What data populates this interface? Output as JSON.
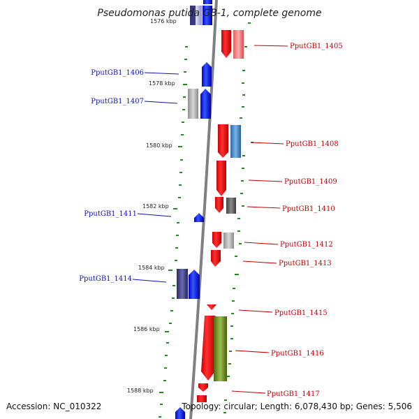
{
  "title": "Pseudomonas putida GB-1, complete genome",
  "footer": {
    "accession": "Accession: NC_010322",
    "summary": "Topology: circular; Length: 6,078,430 bp; Genes: 5,506"
  },
  "colors": {
    "backbone": "#808080",
    "forward_gene": "#0000ff",
    "reverse_gene": "#ff0000",
    "tick": "#228b22",
    "left_label": "#1010b0",
    "right_label": "#c00000"
  },
  "scale_labels": [
    "1576 kbp",
    "1578 kbp",
    "1580 kbp",
    "1582 kbp",
    "1584 kbp",
    "1586 kbp",
    "1588 kbp"
  ],
  "genes_left": [
    "PputGB1_1406",
    "PputGB1_1407",
    "PputGB1_1411",
    "PputGB1_1414"
  ],
  "genes_right": [
    "PputGB1_1405",
    "PputGB1_1408",
    "PputGB1_1409",
    "PputGB1_1410",
    "PputGB1_1412",
    "PputGB1_1413",
    "PputGB1_1415",
    "PputGB1_1416",
    "PputGB1_1417"
  ]
}
